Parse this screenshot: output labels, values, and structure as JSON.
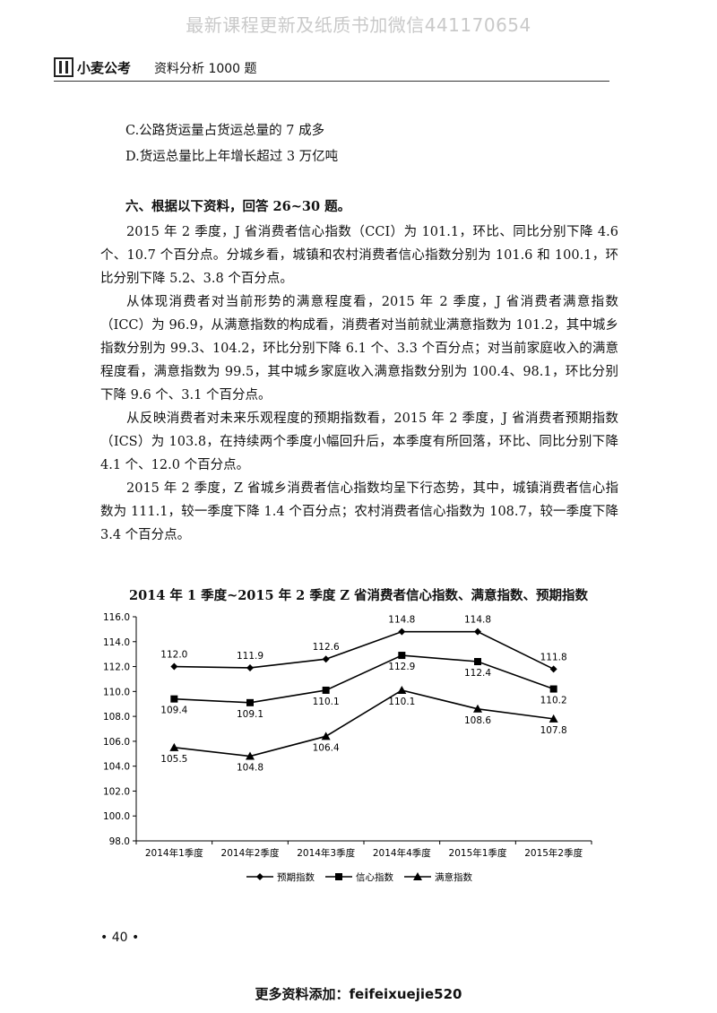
{
  "watermark": "最新课程更新及纸质书加微信441170654",
  "header": {
    "logo_text": "小麦公考",
    "book_title": "资料分析 1000 题"
  },
  "options": [
    "C.公路货运量占货运总量的 7 成多",
    "D.货运总量比上年增长超过 3 万亿吨"
  ],
  "section_title": "六、根据以下资料，回答 26~30 题。",
  "paragraphs": [
    "2015 年 2 季度，J 省消费者信心指数（CCI）为 101.1，环比、同比分别下降 4.6 个、10.7 个百分点。分城乡看，城镇和农村消费者信心指数分别为 101.6 和 100.1，环比分别下降 5.2、3.8 个百分点。",
    "从体现消费者对当前形势的满意程度看，2015 年 2 季度，J 省消费者满意指数（ICC）为 96.9，从满意指数的构成看，消费者对当前就业满意指数为 101.2，其中城乡指数分别为 99.3、104.2，环比分别下降 6.1 个、3.3 个百分点；对当前家庭收入的满意程度看，满意指数为 99.5，其中城乡家庭收入满意指数分别为 100.4、98.1，环比分别下降 9.6 个、3.1 个百分点。",
    "从反映消费者对未来乐观程度的预期指数看，2015 年 2 季度，J 省消费者预期指数（ICS）为 103.8，在持续两个季度小幅回升后，本季度有所回落，环比、同比分别下降 4.1 个、12.0 个百分点。",
    "2015 年 2 季度，Z 省城乡消费者信心指数均呈下行态势，其中，城镇消费者信心指数为 111.1，较一季度下降 1.4 个百分点；农村消费者信心指数为 108.7，较一季度下降 3.4 个百分点。"
  ],
  "chart_data": {
    "type": "line",
    "title": "2014 年 1 季度~2015 年 2 季度 Z 省消费者信心指数、满意指数、预期指数",
    "categories": [
      "2014年1季度",
      "2014年2季度",
      "2014年3季度",
      "2014年4季度",
      "2015年1季度",
      "2015年2季度"
    ],
    "series": [
      {
        "name": "预期指数",
        "marker": "diamond",
        "values": [
          112.0,
          111.9,
          112.6,
          114.8,
          114.8,
          111.8
        ],
        "labels": [
          "112.0",
          "111.9",
          "112.6",
          "114.8",
          "114.8",
          "111.8"
        ]
      },
      {
        "name": "信心指数",
        "marker": "square",
        "values": [
          109.4,
          109.1,
          110.1,
          112.9,
          112.4,
          110.2
        ],
        "labels": [
          "109.4",
          "109.1",
          "110.1",
          "112.9",
          "112.4",
          "110.2"
        ]
      },
      {
        "name": "满意指数",
        "marker": "triangle",
        "values": [
          105.5,
          104.8,
          106.4,
          110.1,
          108.6,
          107.8
        ],
        "labels": [
          "105.5",
          "104.8",
          "106.4",
          "110.1",
          "108.6",
          "107.8"
        ]
      }
    ],
    "ylim": [
      98.0,
      116.0
    ],
    "yticks": [
      "98.0",
      "100.0",
      "102.0",
      "104.0",
      "106.0",
      "108.0",
      "110.0",
      "112.0",
      "114.0",
      "116.0"
    ],
    "grid": false,
    "legend_position": "bottom",
    "line_color": "#000000"
  },
  "page_number": "• 40 •",
  "footer": "更多资料添加：feifeixuejie520"
}
